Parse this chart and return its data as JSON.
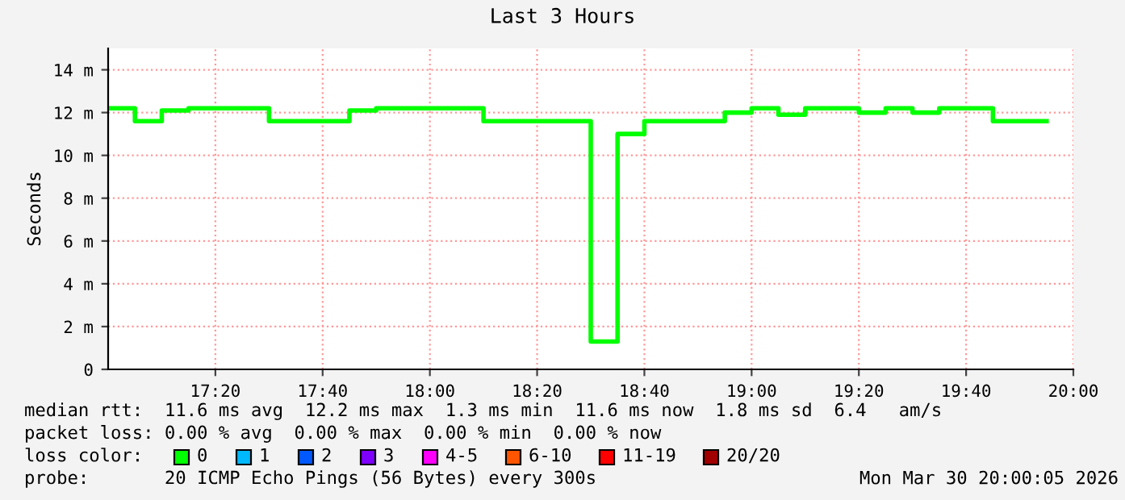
{
  "chart_data": {
    "type": "step",
    "title": "Last 3 Hours",
    "ylabel": "Seconds",
    "x": [
      17.0,
      17.0833,
      17.1667,
      17.25,
      17.3333,
      17.4167,
      17.5,
      17.5833,
      17.6667,
      17.75,
      17.8333,
      17.9167,
      18.0,
      18.0833,
      18.1667,
      18.25,
      18.3333,
      18.4167,
      18.5,
      18.5833,
      18.6667,
      18.75,
      18.8333,
      18.9167,
      19.0,
      19.0833,
      19.1667,
      19.25,
      19.3333,
      19.4167,
      19.5,
      19.5833,
      19.6667,
      19.75,
      19.8333,
      19.9167
    ],
    "series": [
      {
        "color": "#00ff00",
        "values": [
          12.2,
          11.6,
          12.1,
          12.2,
          12.2,
          12.2,
          11.6,
          11.6,
          11.6,
          12.1,
          12.2,
          12.2,
          12.2,
          12.2,
          11.6,
          11.6,
          11.6,
          11.6,
          1.3,
          11.0,
          11.6,
          11.6,
          11.6,
          12.0,
          12.2,
          11.9,
          12.2,
          12.2,
          12.0,
          12.2,
          12.0,
          12.2,
          12.2,
          11.6,
          11.6,
          11.6
        ]
      }
    ],
    "xlim": [
      17,
      20
    ],
    "xticks": [
      {
        "value": 17.3333,
        "label": "17:20"
      },
      {
        "value": 17.6667,
        "label": "17:40"
      },
      {
        "value": 18,
        "label": "18:00"
      },
      {
        "value": 18.3333,
        "label": "18:20"
      },
      {
        "value": 18.6667,
        "label": "18:40"
      },
      {
        "value": 19,
        "label": "19:00"
      },
      {
        "value": 19.3333,
        "label": "19:20"
      },
      {
        "value": 19.6667,
        "label": "19:40"
      },
      {
        "value": 20,
        "label": "20:00"
      }
    ],
    "ylim": [
      0,
      15
    ],
    "yticks": [
      0,
      {
        "value": 2,
        "label": "2 m"
      },
      {
        "value": 4,
        "label": "4 m"
      },
      {
        "value": 6,
        "label": "6 m"
      },
      {
        "value": 8,
        "label": "8 m"
      },
      {
        "value": 10,
        "label": "10 m"
      },
      {
        "value": 12,
        "label": "12 m"
      },
      {
        "value": 14,
        "label": "14 m"
      }
    ],
    "grid": true,
    "line_style": "solid",
    "marker": "none",
    "annotations": [
      "median rtt:  11.6 ms avg  12.2 ms max  1.3 ms min  11.6 ms now  1.8 ms sd  6.4   am/s",
      "packet loss: 0.00 % avg  0.00 % max  0.00 % min  0.00 % now",
      "loss color:",
      "0",
      "1",
      "2",
      "3",
      "4-5",
      "6-10",
      "11-19",
      "20/20",
      "probe:       20 ICMP Echo Pings (56 Bytes) every 300s",
      "Mon Mar 30 20:00:05 2026"
    ]
  }
}
